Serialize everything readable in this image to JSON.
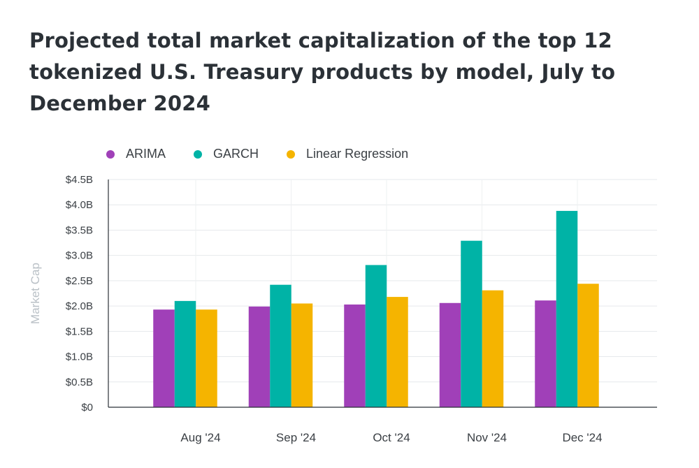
{
  "chart_data": {
    "type": "bar",
    "title": "Projected total market capitalization of the top 12 tokenized U.S. Treasury products by model, July to December 2024",
    "xlabel": "",
    "ylabel": "Market Cap",
    "categories": [
      "Aug '24",
      "Sep '24",
      "Oct '24",
      "Nov '24",
      "Dec '24"
    ],
    "series": [
      {
        "name": "ARIMA",
        "color": "#a040b8",
        "values": [
          1.93,
          1.99,
          2.03,
          2.06,
          2.11
        ]
      },
      {
        "name": "GARCH",
        "color": "#00b3a6",
        "values": [
          2.1,
          2.42,
          2.81,
          3.29,
          3.88
        ]
      },
      {
        "name": "Linear Regression",
        "color": "#f5b400",
        "values": [
          1.93,
          2.05,
          2.18,
          2.31,
          2.44
        ]
      }
    ],
    "ylim": [
      0,
      4.5
    ],
    "yticks": [
      "$0",
      "$0.5B",
      "$1.0B",
      "$1.5B",
      "$2.0B",
      "$2.5B",
      "$3.0B",
      "$3.5B",
      "$4.0B",
      "$4.5B"
    ],
    "grid": true,
    "legend_position": "top-left"
  }
}
